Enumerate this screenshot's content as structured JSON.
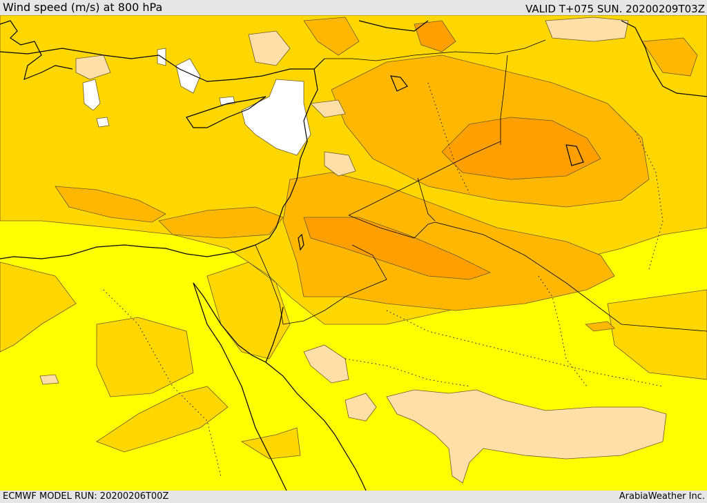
{
  "header": {
    "title": "Wind speed (m/s) at 800 hPa",
    "valid": "VALID T+075 SUN. 20200209T03Z"
  },
  "footer": {
    "model_run": "ECMWF MODEL RUN: 20200206T00Z",
    "credit": "ArabiaWeather Inc."
  },
  "colors": {
    "background_band": "#e6e6e6",
    "band_white": "#ffffff",
    "band_bright_yellow": "#ffff00",
    "band_yellow": "#ffd700",
    "band_amber": "#ffb700",
    "band_orange": "#ff9f00",
    "band_peach": "#ffdfa8",
    "coastline": "#000000",
    "contour": "#6b5a2a"
  }
}
